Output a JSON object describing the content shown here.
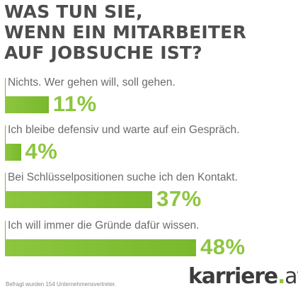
{
  "chart_data": {
    "type": "bar",
    "orientation": "horizontal",
    "title_lines": [
      "WAS TUN SIE,",
      "WENN EIN MITARBEITER",
      "AUF JOBSUCHE IST?"
    ],
    "categories": [
      "Nichts. Wer gehen will, soll gehen.",
      "Ich bleibe defensiv und warte auf ein Gespräch.",
      "Bei Schlüsselpositionen suche ich den Kontakt.",
      "Ich will immer die Gründe dafür wissen."
    ],
    "values": [
      11,
      4,
      37,
      48
    ],
    "value_labels": [
      "11%",
      "4%",
      "37%",
      "48%"
    ],
    "unit": "%",
    "xlim": [
      0,
      48
    ],
    "grid": false,
    "legend": "none",
    "bar_color": "#8cc63f",
    "title_color": "#4d4d4d"
  },
  "footnote": "Befragt wurden 154 Unternehmensvertreter.",
  "logo": {
    "name": "karriere",
    "dot": ".",
    "tld": "at",
    "accent_color": "#8cc63f"
  }
}
